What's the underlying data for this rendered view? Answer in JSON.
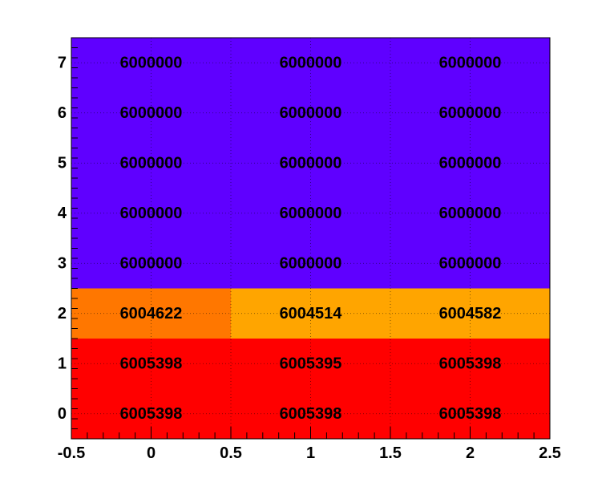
{
  "chart_data": {
    "type": "heatmap",
    "title": "",
    "xlabel": "",
    "ylabel": "",
    "xlim": [
      -0.5,
      2.5
    ],
    "ylim": [
      -0.5,
      7.5
    ],
    "x": [
      0,
      1,
      2
    ],
    "y": [
      0,
      1,
      2,
      3,
      4,
      5,
      6,
      7
    ],
    "x_tick_labels": [
      "-0.5",
      "0",
      "0.5",
      "1",
      "1.5",
      "2",
      "2.5"
    ],
    "y_tick_labels": [
      "0",
      "1",
      "2",
      "3",
      "4",
      "5",
      "6",
      "7"
    ],
    "grid": true,
    "cells": [
      {
        "x": 0,
        "y": 0,
        "value": 6005398,
        "label": "6005398",
        "color": "#ff0000"
      },
      {
        "x": 1,
        "y": 0,
        "value": 6005398,
        "label": "6005398",
        "color": "#ff0000"
      },
      {
        "x": 2,
        "y": 0,
        "value": 6005398,
        "label": "6005398",
        "color": "#ff0000"
      },
      {
        "x": 0,
        "y": 1,
        "value": 6005398,
        "label": "6005398",
        "color": "#ff0000"
      },
      {
        "x": 1,
        "y": 1,
        "value": 6005395,
        "label": "6005395",
        "color": "#ff0000"
      },
      {
        "x": 2,
        "y": 1,
        "value": 6005398,
        "label": "6005398",
        "color": "#ff0000"
      },
      {
        "x": 0,
        "y": 2,
        "value": 6004622,
        "label": "6004622",
        "color": "#ff7700"
      },
      {
        "x": 1,
        "y": 2,
        "value": 6004514,
        "label": "6004514",
        "color": "#ffa500"
      },
      {
        "x": 2,
        "y": 2,
        "value": 6004582,
        "label": "6004582",
        "color": "#ffa500"
      },
      {
        "x": 0,
        "y": 3,
        "value": 6000000,
        "label": "6000000",
        "color": "#5f00ff"
      },
      {
        "x": 1,
        "y": 3,
        "value": 6000000,
        "label": "6000000",
        "color": "#5f00ff"
      },
      {
        "x": 2,
        "y": 3,
        "value": 6000000,
        "label": "6000000",
        "color": "#5f00ff"
      },
      {
        "x": 0,
        "y": 4,
        "value": 6000000,
        "label": "6000000",
        "color": "#5f00ff"
      },
      {
        "x": 1,
        "y": 4,
        "value": 6000000,
        "label": "6000000",
        "color": "#5f00ff"
      },
      {
        "x": 2,
        "y": 4,
        "value": 6000000,
        "label": "6000000",
        "color": "#5f00ff"
      },
      {
        "x": 0,
        "y": 5,
        "value": 6000000,
        "label": "6000000",
        "color": "#5f00ff"
      },
      {
        "x": 1,
        "y": 5,
        "value": 6000000,
        "label": "6000000",
        "color": "#5f00ff"
      },
      {
        "x": 2,
        "y": 5,
        "value": 6000000,
        "label": "6000000",
        "color": "#5f00ff"
      },
      {
        "x": 0,
        "y": 6,
        "value": 6000000,
        "label": "6000000",
        "color": "#5f00ff"
      },
      {
        "x": 1,
        "y": 6,
        "value": 6000000,
        "label": "6000000",
        "color": "#5f00ff"
      },
      {
        "x": 2,
        "y": 6,
        "value": 6000000,
        "label": "6000000",
        "color": "#5f00ff"
      },
      {
        "x": 0,
        "y": 7,
        "value": 6000000,
        "label": "6000000",
        "color": "#5f00ff"
      },
      {
        "x": 1,
        "y": 7,
        "value": 6000000,
        "label": "6000000",
        "color": "#5f00ff"
      },
      {
        "x": 2,
        "y": 7,
        "value": 6000000,
        "label": "6000000",
        "color": "#5f00ff"
      }
    ]
  }
}
